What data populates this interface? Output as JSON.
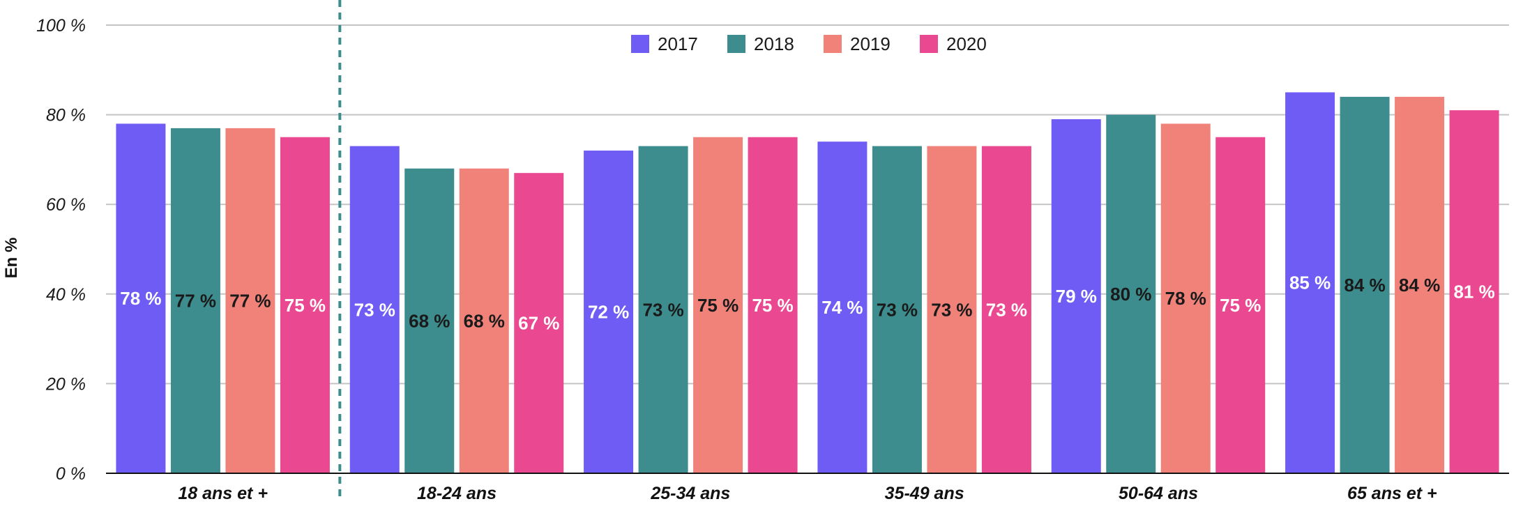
{
  "chart_data": {
    "type": "bar",
    "title": "",
    "xlabel": "",
    "ylabel": "En %",
    "ylim": [
      0,
      100
    ],
    "yticks": [
      {
        "value": 0,
        "label": "0 %"
      },
      {
        "value": 20,
        "label": "20 %"
      },
      {
        "value": 40,
        "label": "40 %"
      },
      {
        "value": 60,
        "label": "60 %"
      },
      {
        "value": 80,
        "label": "80 %"
      },
      {
        "value": 100,
        "label": "100 %"
      }
    ],
    "grid": true,
    "legend_position": "top-center",
    "categories": [
      "18 ans et +",
      "18-24 ans",
      "25-34 ans",
      "35-49 ans",
      "50-64 ans",
      "65 ans et +"
    ],
    "separator_after_category": 0,
    "series": [
      {
        "name": "2017",
        "color": "#6f5cf5",
        "label_color": "#ffffff",
        "values": [
          78,
          73,
          72,
          74,
          79,
          85
        ],
        "labels": [
          "78 %",
          "73 %",
          "72 %",
          "74 %",
          "79 %",
          "85 %"
        ]
      },
      {
        "name": "2018",
        "color": "#3d8d8e",
        "label_color": "#1a1a1a",
        "values": [
          77,
          68,
          73,
          73,
          80,
          84
        ],
        "labels": [
          "77 %",
          "68 %",
          "73 %",
          "73 %",
          "80 %",
          "84 %"
        ]
      },
      {
        "name": "2019",
        "color": "#f0827a",
        "label_color": "#1a1a1a",
        "values": [
          77,
          68,
          75,
          73,
          78,
          84
        ],
        "labels": [
          "77 %",
          "68 %",
          "75 %",
          "73 %",
          "78 %",
          "84 %"
        ]
      },
      {
        "name": "2020",
        "color": "#ea4890",
        "label_color": "#ffffff",
        "values": [
          75,
          67,
          75,
          73,
          75,
          81
        ],
        "labels": [
          "75 %",
          "67 %",
          "75 %",
          "73 %",
          "75 %",
          "81 %"
        ]
      }
    ]
  }
}
